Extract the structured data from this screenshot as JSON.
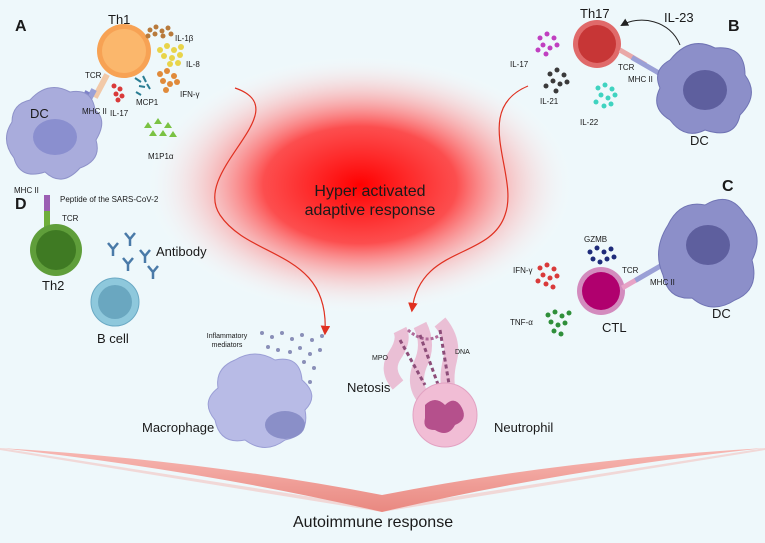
{
  "panels": {
    "a": "A",
    "b": "B",
    "c": "C",
    "d": "D"
  },
  "center": {
    "line1": "Hyper activated",
    "line2": "adaptive response"
  },
  "bottom": "Autoimmune response",
  "panel_a": {
    "th1": "Th1",
    "tcr": "TCR",
    "mhc": "MHC II",
    "dc": "DC",
    "il1b": "IL-1β",
    "il8": "IL-8",
    "ifng": "IFN-γ",
    "mcp1": "MCP1",
    "il17": "IL-17",
    "mip1a": "M1P1α"
  },
  "panel_b": {
    "th17": "Th17",
    "il23": "IL-23",
    "il17": "IL-17",
    "il21": "IL-21",
    "il22": "IL-22",
    "tcr": "TCR",
    "mhc": "MHC II",
    "dc": "DC"
  },
  "panel_c": {
    "gzmb": "GZMB",
    "ifng": "IFN-γ",
    "tnfa": "TNF-α",
    "ctl": "CTL",
    "tcr": "TCR",
    "mhc": "MHC II",
    "dc": "DC"
  },
  "panel_d": {
    "mhc": "MHC II",
    "peptide": "Peptide of the SARS-CoV-2",
    "tcr": "TCR",
    "th2": "Th2",
    "antibody": "Antibody",
    "bcell": "B cell"
  },
  "bottom_cells": {
    "mediators": "Inflammatory mediators",
    "macrophage": "Macrophage",
    "netosis": "Netosis",
    "mpo": "MPO",
    "dna": "DNA",
    "neutrophil": "Neutrophil"
  }
}
